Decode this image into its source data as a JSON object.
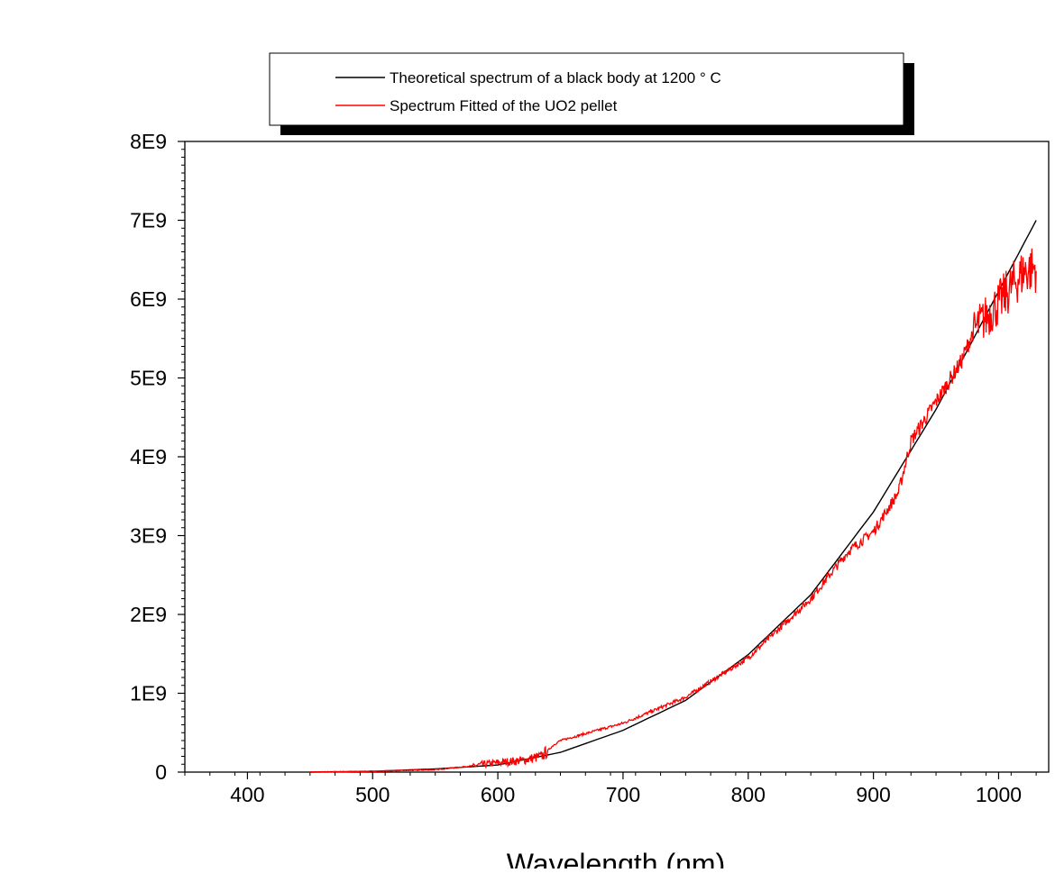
{
  "chart_data": {
    "type": "line",
    "title": "",
    "xlabel": "Wavelength (nm)",
    "ylabel": "",
    "xlim": [
      350,
      1040
    ],
    "ylim": [
      0,
      8000000000
    ],
    "x_ticks": [
      400,
      500,
      600,
      700,
      800,
      900,
      1000
    ],
    "x_tick_labels": [
      "400",
      "500",
      "600",
      "700",
      "800",
      "900",
      "1000"
    ],
    "y_ticks": [
      0,
      1000000000,
      2000000000,
      3000000000,
      4000000000,
      5000000000,
      6000000000,
      7000000000,
      8000000000
    ],
    "y_tick_labels": [
      "0",
      "1E9",
      "2E9",
      "3E9",
      "4E9",
      "5E9",
      "6E9",
      "7E9",
      "8E9"
    ],
    "grid": false,
    "legend_placement": "top-center, above plot",
    "series": [
      {
        "name": "Theoretical spectrum of a black body at 1200 ° C",
        "color": "#000000",
        "x": [
          450,
          500,
          550,
          600,
          650,
          700,
          750,
          800,
          850,
          900,
          950,
          1000,
          1030
        ],
        "y": [
          0,
          10000000,
          40000000,
          90000000,
          250000000,
          530000000,
          910000000,
          1490000000,
          2250000000,
          3300000000,
          4600000000,
          6100000000,
          7000000000
        ]
      },
      {
        "name": "Spectrum Fitted of the UO2 pellet",
        "color": "#ff0000",
        "noisy": true,
        "x": [
          450,
          500,
          550,
          580,
          600,
          620,
          635,
          645,
          650,
          700,
          750,
          800,
          850,
          880,
          900,
          920,
          930,
          950,
          970,
          980,
          1000,
          1010,
          1020,
          1030
        ],
        "y": [
          0,
          10000000,
          30000000,
          80000000,
          120000000,
          150000000,
          200000000,
          350000000,
          400000000,
          620000000,
          950000000,
          1450000000,
          2200000000,
          2800000000,
          3050000000,
          3550000000,
          4200000000,
          4700000000,
          5200000000,
          5600000000,
          5950000000,
          6150000000,
          6350000000,
          6400000000
        ]
      }
    ]
  }
}
